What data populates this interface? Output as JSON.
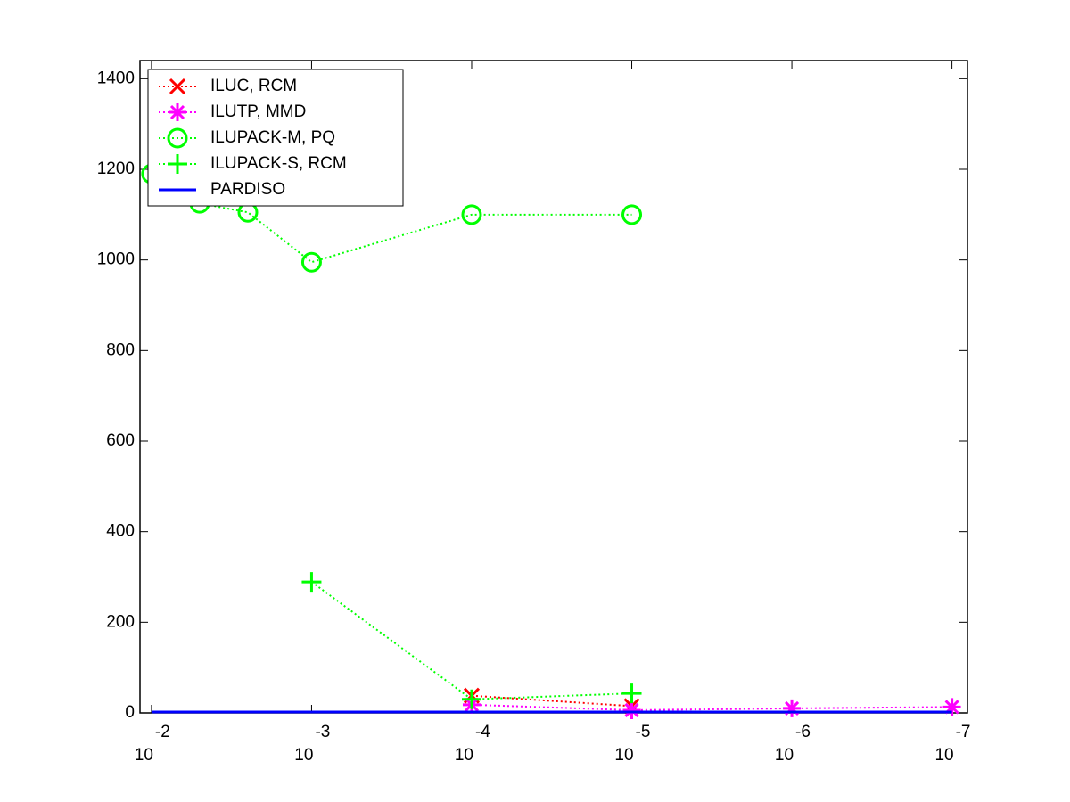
{
  "chart_data": {
    "type": "line",
    "xscale": "log",
    "xdir": "reverse",
    "xlim": [
      0.0118,
      8e-08
    ],
    "ylim": [
      0,
      1440
    ],
    "xticks": [
      {
        "value": 0.01,
        "label": {
          "base": "10",
          "exponent": "-2"
        }
      },
      {
        "value": 0.001,
        "label": {
          "base": "10",
          "exponent": "-3"
        }
      },
      {
        "value": 0.0001,
        "label": {
          "base": "10",
          "exponent": "-4"
        }
      },
      {
        "value": 1e-05,
        "label": {
          "base": "10",
          "exponent": "-5"
        }
      },
      {
        "value": 1e-06,
        "label": {
          "base": "10",
          "exponent": "-6"
        }
      },
      {
        "value": 1e-07,
        "label": {
          "base": "10",
          "exponent": "-7"
        }
      }
    ],
    "yticks": [
      0,
      200,
      400,
      600,
      800,
      1000,
      1200,
      1400
    ],
    "legend": "upper left",
    "series": [
      {
        "name": "ILUC, RCM",
        "color": "#ff0000",
        "marker": "x",
        "linestyle": "dotted",
        "x": [
          0.0001,
          1e-05
        ],
        "values": [
          38,
          15
        ]
      },
      {
        "name": "ILUTP, MMD",
        "color": "#ff00ff",
        "marker": "*",
        "linestyle": "dotted",
        "x": [
          0.0001,
          1e-05,
          1e-06,
          1e-07
        ],
        "values": [
          18,
          6,
          10,
          13
        ]
      },
      {
        "name": "ILUPACK-M, PQ",
        "color": "#00ff00",
        "marker": "o",
        "linestyle": "dotted",
        "x": [
          0.01,
          0.005,
          0.0025,
          0.001,
          0.0001,
          1e-05
        ],
        "values": [
          1190,
          1125,
          1105,
          995,
          1100,
          1100
        ]
      },
      {
        "name": "ILUPACK-S, RCM",
        "color": "#00ff00",
        "marker": "+",
        "linestyle": "dotted",
        "x": [
          0.001,
          0.0001,
          1e-05
        ],
        "values": [
          289,
          30,
          43
        ]
      },
      {
        "name": "PARDISO",
        "color": "#0000ff",
        "marker": "none",
        "linestyle": "solid",
        "x": [
          0.01,
          0.001,
          0.0001,
          1e-05,
          1e-06,
          1e-07
        ],
        "values": [
          2,
          2,
          2,
          2,
          2,
          2
        ]
      }
    ]
  }
}
